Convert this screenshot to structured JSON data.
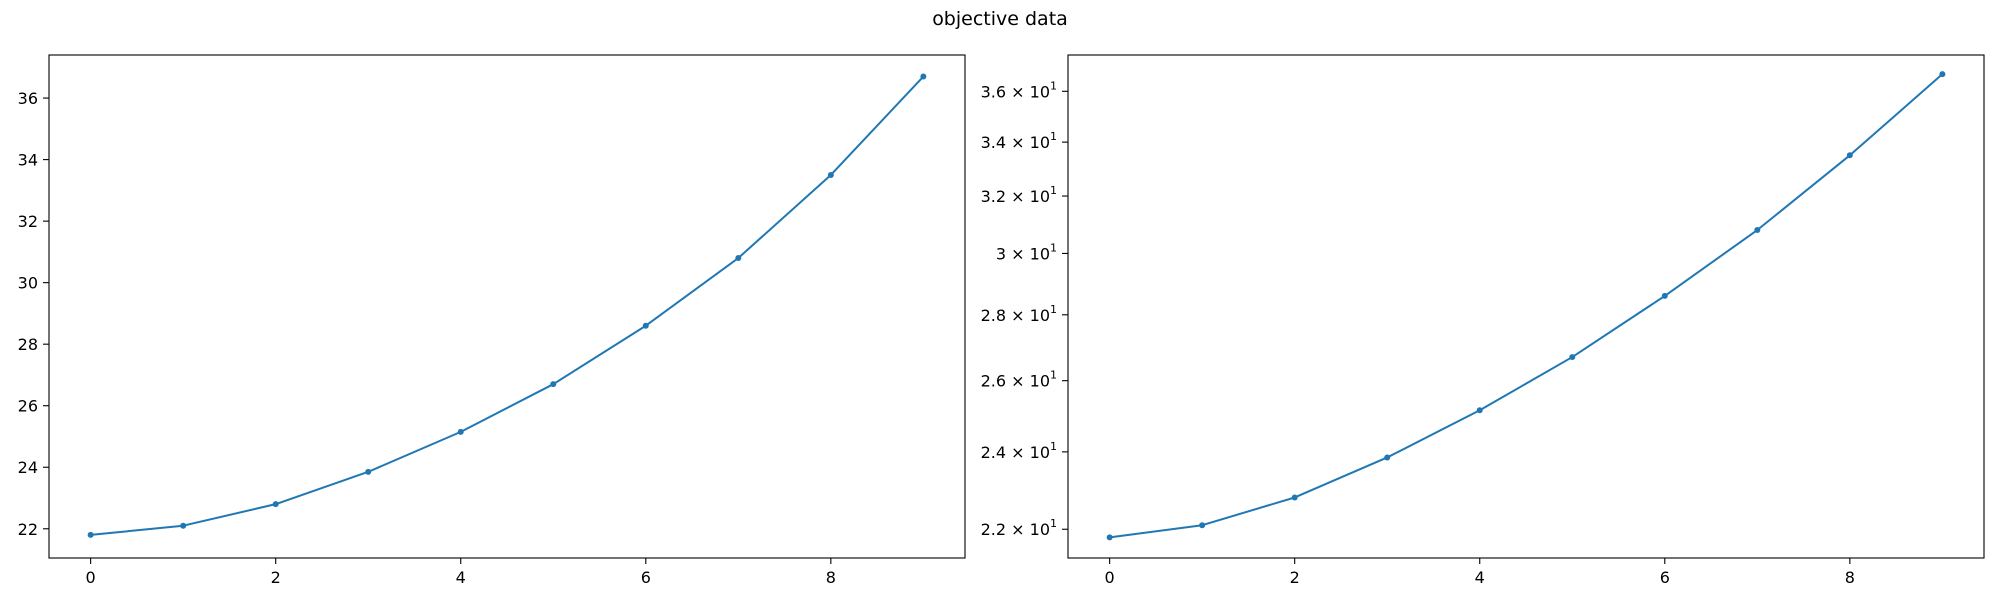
{
  "figure": {
    "title": "objective data"
  },
  "chart_data": [
    {
      "type": "line",
      "title": "",
      "xlabel": "",
      "ylabel": "",
      "yscale": "linear",
      "grid": false,
      "x": [
        0,
        1,
        2,
        3,
        4,
        5,
        6,
        7,
        8,
        9
      ],
      "series": [
        {
          "values": [
            21.8,
            22.1,
            22.8,
            23.85,
            25.15,
            26.7,
            28.6,
            30.8,
            33.5,
            36.7
          ],
          "color": "#1f77b4"
        }
      ],
      "xlim": [
        -0.45,
        9.45
      ],
      "ylim": [
        21.05,
        37.4
      ],
      "xticks": [
        0,
        2,
        4,
        6,
        8
      ],
      "xtick_labels": [
        "0",
        "2",
        "4",
        "6",
        "8"
      ],
      "yticks": [
        22,
        24,
        26,
        28,
        30,
        32,
        34,
        36
      ],
      "ytick_labels": [
        "22",
        "24",
        "26",
        "28",
        "30",
        "32",
        "34",
        "36"
      ]
    },
    {
      "type": "line",
      "title": "",
      "xlabel": "",
      "ylabel": "",
      "yscale": "log",
      "grid": false,
      "x": [
        0,
        1,
        2,
        3,
        4,
        5,
        6,
        7,
        8,
        9
      ],
      "series": [
        {
          "values": [
            21.8,
            22.1,
            22.8,
            23.85,
            25.15,
            26.7,
            28.6,
            30.8,
            33.5,
            36.7
          ],
          "color": "#1f77b4"
        }
      ],
      "xlim": [
        -0.45,
        9.45
      ],
      "ylim": [
        21.3,
        37.5
      ],
      "xticks": [
        0,
        2,
        4,
        6,
        8
      ],
      "xtick_labels": [
        "0",
        "2",
        "4",
        "6",
        "8"
      ],
      "yticks": [
        22,
        24,
        26,
        28,
        30,
        32,
        34,
        36
      ],
      "ytick_labels": [
        {
          "mantissa": "2.2",
          "exponent": "1"
        },
        {
          "mantissa": "2.4",
          "exponent": "1"
        },
        {
          "mantissa": "2.6",
          "exponent": "1"
        },
        {
          "mantissa": "2.8",
          "exponent": "1"
        },
        {
          "mantissa": "3",
          "exponent": "1"
        },
        {
          "mantissa": "3.2",
          "exponent": "1"
        },
        {
          "mantissa": "3.4",
          "exponent": "1"
        },
        {
          "mantissa": "3.6",
          "exponent": "1"
        }
      ],
      "ytick_base": "10",
      "ytick_times": "×"
    }
  ]
}
